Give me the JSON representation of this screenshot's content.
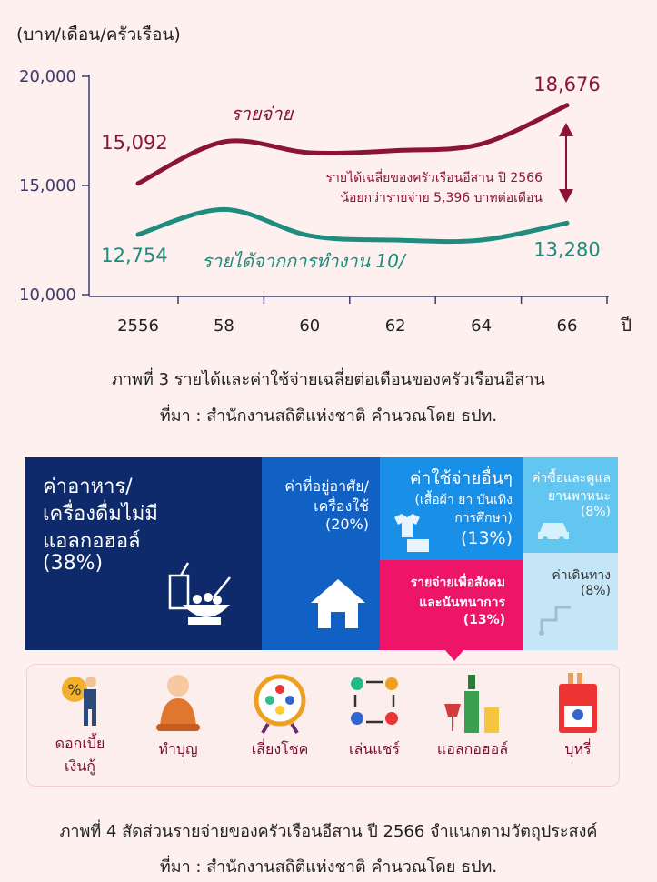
{
  "chart_data": {
    "type": "line",
    "ylabel": "(บาท/เดือน/ครัวเรือน)",
    "xlabel": "ปี",
    "categories": [
      "2556",
      "58",
      "60",
      "62",
      "64",
      "66"
    ],
    "ylim": [
      10000,
      20000
    ],
    "yticks": [
      "10,000",
      "15,000",
      "20,000"
    ],
    "series": [
      {
        "name": "รายจ่าย",
        "color": "#8b1435",
        "values": [
          15092,
          17000,
          16500,
          16600,
          16900,
          18676
        ],
        "start_label": "15,092",
        "end_label": "18,676"
      },
      {
        "name": "รายได้จากการทำงาน 10/",
        "color": "#1e8c7e",
        "values": [
          12754,
          13900,
          12700,
          12500,
          12500,
          13280
        ],
        "start_label": "12,754",
        "end_label": "13,280"
      }
    ],
    "annotation": [
      "รายได้เฉลี่ยของครัวเรือนอีสาน ปี 2566",
      "น้อยกว่ารายจ่าย 5,396 บาทต่อเดือน"
    ],
    "annotation_color": "#8b1435"
  },
  "caption1": "ภาพที่ 3  รายได้และค่าใช้จ่ายเฉลี่ยต่อเดือนของครัวเรือนอีสาน",
  "source1": "ที่มา :  สำนักงานสถิติแห่งชาติ คำนวณโดย ธปท.",
  "treemap": {
    "food": {
      "line1": "ค่าอาหาร/",
      "line2": "เครื่องดื่มไม่มี",
      "line3": "แอลกอฮอล์",
      "pct": "(38%)",
      "color": "#0f2a6b"
    },
    "housing": {
      "line1": "ค่าที่อยู่อาศัย/",
      "line2": "เครื่องใช้",
      "pct": "(20%)",
      "color": "#1160c4"
    },
    "other": {
      "line1": "ค่าใช้จ่ายอื่นๆ",
      "line2": "(เสื้อผ้า ยา บันเทิง",
      "line3": "การศึกษา)",
      "pct": "(13%)",
      "color": "#1a8fe8"
    },
    "social": {
      "line1": "รายจ่ายเพื่อสังคม",
      "line2": "และนันทนาการ",
      "pct": "(13%)",
      "color": "#ee1467"
    },
    "vehicle": {
      "line1": "ค่าซื้อและดูแล",
      "line2": "ยานพาหนะ",
      "pct": "(8%)",
      "color": "#63c6f1"
    },
    "travel": {
      "line1": "ค่าเดินทาง",
      "pct": "(8%)",
      "color": "#c4e6f7"
    }
  },
  "icons": [
    {
      "label": "ดอกเบี้ย",
      "label2": "เงินกู้",
      "icon": "debt-icon"
    },
    {
      "label": "ทำบุญ",
      "icon": "monk-icon"
    },
    {
      "label": "เสี่ยงโชค",
      "icon": "lottery-wheel-icon"
    },
    {
      "label": "เล่นแชร์",
      "icon": "share-circle-icon"
    },
    {
      "label": "แอลกอฮอล์",
      "icon": "alcohol-icon"
    },
    {
      "label": "บุหรี่",
      "icon": "cigarette-icon"
    }
  ],
  "caption2": "ภาพที่ 4 สัดส่วนรายจ่ายของครัวเรือนอีสาน ปี 2566 จำแนกตามวัตถุประสงค์",
  "source2": "ที่มา :  สำนักงานสถิติแห่งชาติ คำนวณโดย ธปท."
}
